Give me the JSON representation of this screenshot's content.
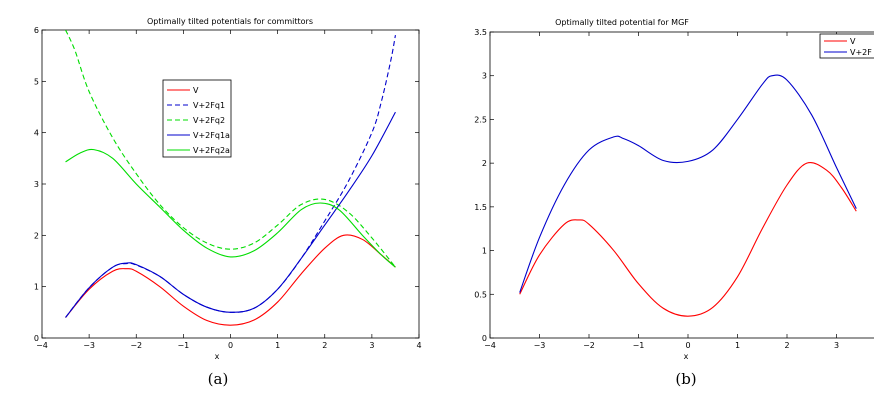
{
  "chart_data": [
    {
      "type": "line",
      "title": "Optimally tilted potentials for committors",
      "xlabel": "x",
      "ylabel": "",
      "xlim": [
        -4,
        4
      ],
      "ylim": [
        0,
        6
      ],
      "xticks": [
        "−4",
        "−3",
        "−2",
        "−1",
        "0",
        "1",
        "2",
        "3",
        "4"
      ],
      "yticks": [
        "0",
        "1",
        "2",
        "3",
        "4",
        "5",
        "6"
      ],
      "legend_position": "upper-center",
      "caption": "(a)",
      "series": [
        {
          "name": "V",
          "color": "#ff0000",
          "dash": "solid",
          "x": [
            -3.5,
            -3,
            -2.5,
            -2.2,
            -2,
            -1.5,
            -1,
            -0.5,
            0,
            0.5,
            1,
            1.5,
            2,
            2.4,
            2.8,
            3.2,
            3.5
          ],
          "y": [
            0.4,
            0.95,
            1.3,
            1.35,
            1.3,
            1.0,
            0.62,
            0.34,
            0.25,
            0.35,
            0.7,
            1.25,
            1.75,
            2.0,
            1.92,
            1.62,
            1.38
          ]
        },
        {
          "name": "V+2Fq1",
          "color": "#0000cc",
          "dash": "dashed",
          "x": [
            -3.5,
            -3,
            -2.5,
            -2.2,
            -2,
            -1.5,
            -1,
            -0.5,
            0,
            0.5,
            1,
            1.5,
            2,
            2.5,
            3,
            3.2,
            3.4,
            3.5
          ],
          "y": [
            0.4,
            0.98,
            1.38,
            1.45,
            1.42,
            1.2,
            0.85,
            0.6,
            0.5,
            0.58,
            0.95,
            1.55,
            2.28,
            3.05,
            4.0,
            4.6,
            5.4,
            5.9
          ]
        },
        {
          "name": "V+2Fq2",
          "color": "#00dd00",
          "dash": "dashed",
          "x": [
            -3.5,
            -3.3,
            -3,
            -2.5,
            -2,
            -1.5,
            -1,
            -0.5,
            0,
            0.5,
            1,
            1.5,
            2,
            2.5,
            3,
            3.5
          ],
          "y": [
            6.0,
            5.6,
            4.8,
            3.9,
            3.2,
            2.6,
            2.15,
            1.85,
            1.73,
            1.85,
            2.2,
            2.6,
            2.7,
            2.45,
            1.95,
            1.38
          ]
        },
        {
          "name": "V+2Fq1a",
          "color": "#0000cc",
          "dash": "solid",
          "x": [
            -3.5,
            -3,
            -2.5,
            -2.2,
            -2,
            -1.5,
            -1,
            -0.5,
            0,
            0.5,
            1,
            1.5,
            2,
            2.5,
            3,
            3.5
          ],
          "y": [
            0.4,
            0.98,
            1.38,
            1.46,
            1.43,
            1.2,
            0.85,
            0.6,
            0.5,
            0.58,
            0.95,
            1.55,
            2.2,
            2.85,
            3.55,
            4.4
          ]
        },
        {
          "name": "V+2Fq2a",
          "color": "#00dd00",
          "dash": "solid",
          "x": [
            -3.5,
            -3.2,
            -2.9,
            -2.5,
            -2,
            -1.5,
            -1,
            -0.5,
            0,
            0.5,
            1,
            1.5,
            1.9,
            2.3,
            2.8,
            3.2,
            3.5
          ],
          "y": [
            3.43,
            3.6,
            3.67,
            3.5,
            3.0,
            2.55,
            2.1,
            1.75,
            1.58,
            1.7,
            2.05,
            2.5,
            2.63,
            2.5,
            2.0,
            1.62,
            1.38
          ]
        }
      ]
    },
    {
      "type": "line",
      "title": "Optimally tilted potential for MGF",
      "xlabel": "x",
      "ylabel": "",
      "xlim": [
        -4,
        4
      ],
      "ylim": [
        0,
        3.5
      ],
      "xticks": [
        "−4",
        "−3",
        "−2",
        "−1",
        "0",
        "1",
        "2",
        "3",
        "4"
      ],
      "yticks": [
        "0",
        "0.5",
        "1",
        "1.5",
        "2",
        "2.5",
        "3",
        "3.5"
      ],
      "legend_position": "upper-right",
      "caption": "(b)",
      "series": [
        {
          "name": "V",
          "color": "#ff0000",
          "dash": "solid",
          "x": [
            -3.4,
            -3,
            -2.5,
            -2.2,
            -2,
            -1.5,
            -1,
            -0.5,
            0,
            0.5,
            1,
            1.5,
            2,
            2.4,
            2.8,
            3.1,
            3.4
          ],
          "y": [
            0.5,
            0.95,
            1.3,
            1.35,
            1.3,
            1.0,
            0.62,
            0.34,
            0.25,
            0.35,
            0.7,
            1.25,
            1.75,
            2.0,
            1.92,
            1.72,
            1.45
          ]
        },
        {
          "name": "V+2F",
          "color": "#0000cc",
          "dash": "solid",
          "x": [
            -3.4,
            -3,
            -2.5,
            -2,
            -1.5,
            -1.3,
            -1,
            -0.5,
            0,
            0.5,
            1,
            1.5,
            1.7,
            2,
            2.5,
            3,
            3.4
          ],
          "y": [
            0.52,
            1.15,
            1.75,
            2.15,
            2.3,
            2.28,
            2.2,
            2.03,
            2.02,
            2.15,
            2.5,
            2.9,
            3.0,
            2.95,
            2.55,
            1.95,
            1.48
          ]
        }
      ]
    }
  ]
}
